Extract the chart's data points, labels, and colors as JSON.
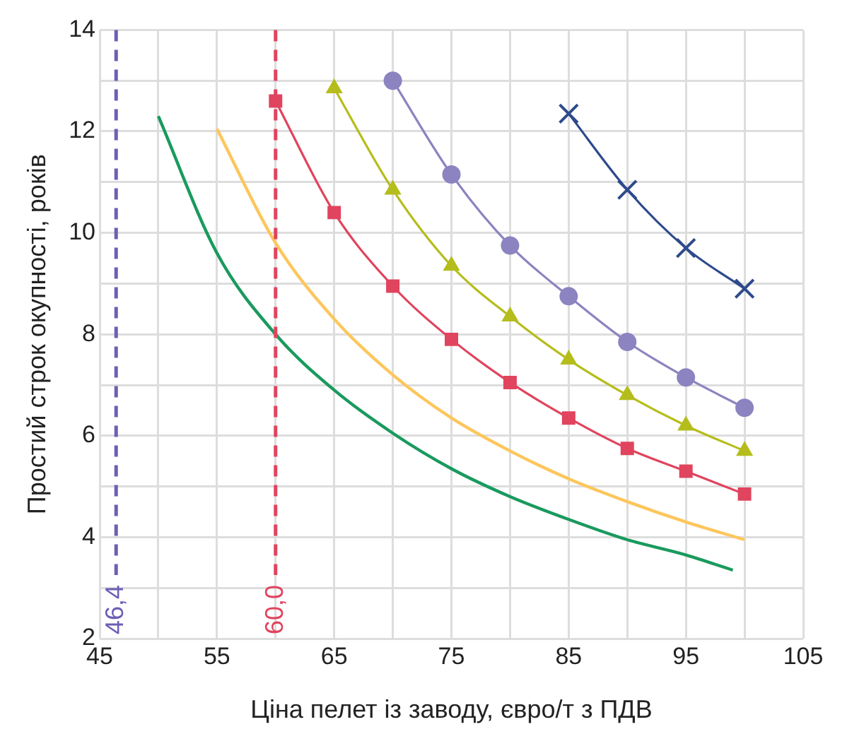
{
  "chart_data": {
    "type": "line",
    "xlabel": "Ціна пелет із заводу, євро/т з ПДВ",
    "ylabel": "Простий строк окупності, років",
    "xlim": [
      45,
      105
    ],
    "xticks": [
      45,
      {
        "value": 50,
        "label": null
      },
      55,
      {
        "value": 60,
        "label": null
      },
      65,
      {
        "value": 70,
        "label": null
      },
      75,
      {
        "value": 80,
        "label": null
      },
      85,
      {
        "value": 90,
        "label": null
      },
      95,
      {
        "value": 100,
        "label": null
      },
      105
    ],
    "ylim": [
      2,
      14
    ],
    "yticks": [
      2,
      {
        "value": 3,
        "label": null
      },
      4,
      {
        "value": 5,
        "label": null
      },
      6,
      {
        "value": 7,
        "label": null
      },
      8,
      {
        "value": 9,
        "label": null
      },
      10,
      {
        "value": 11,
        "label": null
      },
      12,
      {
        "value": 13,
        "label": null
      },
      14
    ],
    "grid": true,
    "series": [
      {
        "color": "#2e4a8c",
        "marker": "cross",
        "x": [
          85,
          90,
          95,
          100
        ],
        "values": [
          12.35,
          10.85,
          9.7,
          8.9
        ]
      },
      {
        "color": "#8b84c0",
        "marker": "circle",
        "x": [
          70,
          75,
          80,
          85,
          90,
          95,
          100
        ],
        "values": [
          13.0,
          11.15,
          9.75,
          8.75,
          7.85,
          7.15,
          6.55
        ]
      },
      {
        "color": "#b5bd1c",
        "marker": "triangle",
        "x": [
          65,
          70,
          75,
          80,
          85,
          90,
          95,
          100
        ],
        "values": [
          12.85,
          10.85,
          9.35,
          8.35,
          7.5,
          6.8,
          6.2,
          5.7
        ]
      },
      {
        "color": "#e0445e",
        "marker": "square",
        "x": [
          60,
          65,
          70,
          75,
          80,
          85,
          90,
          95,
          100
        ],
        "values": [
          12.6,
          10.4,
          8.95,
          7.9,
          7.05,
          6.35,
          5.75,
          5.3,
          4.85
        ]
      },
      {
        "color": "#fdc65c",
        "marker": "none",
        "x": [
          55,
          60,
          65,
          70,
          75,
          80,
          85,
          90,
          95,
          100
        ],
        "values": [
          12.05,
          9.8,
          8.3,
          7.2,
          6.35,
          5.7,
          5.15,
          4.7,
          4.3,
          3.95
        ]
      },
      {
        "color": "#1a9a5e",
        "marker": "none",
        "x": [
          50,
          55,
          60,
          65,
          70,
          75,
          80,
          85,
          90,
          95,
          99
        ],
        "values": [
          12.3,
          9.6,
          8.0,
          6.9,
          6.05,
          5.35,
          4.8,
          4.35,
          3.95,
          3.65,
          3.35
        ]
      }
    ],
    "ref_lines": [
      {
        "axis": "x",
        "value": 46.4,
        "label": "46,4",
        "color": "#6b5fb5",
        "line_style": "dashed"
      },
      {
        "axis": "x",
        "value": 60,
        "label": "60,0",
        "color": "#e0445e",
        "line_style": "dashed"
      }
    ]
  }
}
